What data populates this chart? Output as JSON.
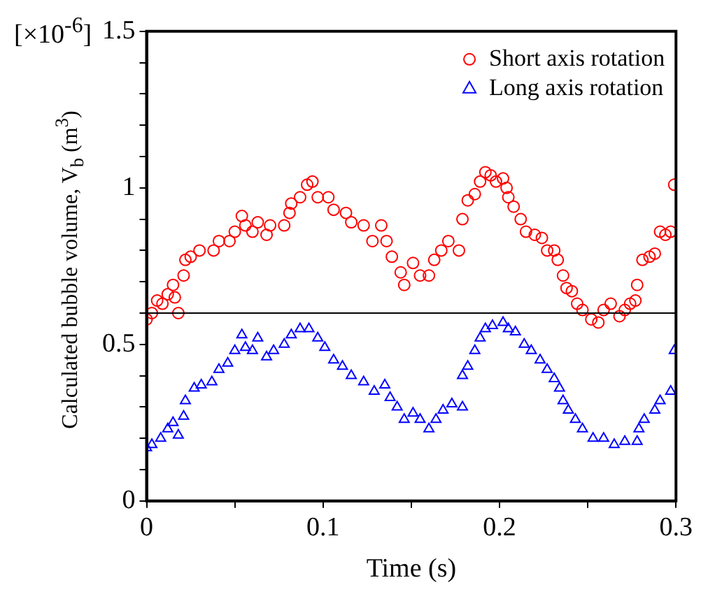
{
  "chart_data": {
    "type": "scatter",
    "xlabel": "Time (s)",
    "ylabel": "Calculated bubble volume, V$_{b}$ (m$^{3}$)",
    "annotations": [
      "[×10$^{-6}$]"
    ],
    "xlim": [
      0,
      0.3
    ],
    "xticks": [
      0,
      {
        "value": 0.05,
        "label": null
      },
      0.1,
      {
        "value": 0.15,
        "label": null
      },
      0.2,
      {
        "value": 0.25,
        "label": null
      },
      0.3
    ],
    "ylim": [
      0,
      1.5
    ],
    "yticks": [
      0,
      {
        "value": 0.1,
        "label": null
      },
      {
        "value": 0.2,
        "label": null
      },
      {
        "value": 0.3,
        "label": null
      },
      {
        "value": 0.4,
        "label": null
      },
      0.5,
      {
        "value": 0.6,
        "label": null
      },
      {
        "value": 0.7,
        "label": null
      },
      {
        "value": 0.8,
        "label": null
      },
      {
        "value": 0.9,
        "label": null
      },
      1,
      {
        "value": 1.1,
        "label": null
      },
      {
        "value": 1.2,
        "label": null
      },
      {
        "value": 1.3,
        "label": null
      },
      {
        "value": 1.4,
        "label": null
      },
      1.5
    ],
    "grid": false,
    "legend": "top right",
    "ref_lines": [
      {
        "axis": "y",
        "value": 0.6,
        "color": "#000000"
      }
    ],
    "series": [
      {
        "name": "Short axis rotation",
        "color": "#ff0000",
        "marker": "circle",
        "x": [
          0.0,
          0.003,
          0.006,
          0.009,
          0.012,
          0.015,
          0.016,
          0.018,
          0.021,
          0.022,
          0.025,
          0.03,
          0.038,
          0.041,
          0.047,
          0.05,
          0.054,
          0.056,
          0.06,
          0.063,
          0.068,
          0.07,
          0.078,
          0.081,
          0.082,
          0.087,
          0.091,
          0.094,
          0.097,
          0.103,
          0.106,
          0.113,
          0.116,
          0.123,
          0.128,
          0.133,
          0.136,
          0.139,
          0.144,
          0.146,
          0.151,
          0.155,
          0.16,
          0.163,
          0.167,
          0.171,
          0.177,
          0.179,
          0.182,
          0.186,
          0.189,
          0.192,
          0.195,
          0.198,
          0.202,
          0.204,
          0.205,
          0.208,
          0.212,
          0.215,
          0.22,
          0.224,
          0.227,
          0.231,
          0.233,
          0.236,
          0.238,
          0.241,
          0.244,
          0.247,
          0.252,
          0.256,
          0.259,
          0.263,
          0.268,
          0.271,
          0.274,
          0.277,
          0.278,
          0.281,
          0.285,
          0.288,
          0.291,
          0.294,
          0.297,
          0.299
        ],
        "values": [
          0.58,
          0.6,
          0.64,
          0.63,
          0.66,
          0.69,
          0.65,
          0.6,
          0.72,
          0.77,
          0.78,
          0.8,
          0.8,
          0.83,
          0.83,
          0.86,
          0.91,
          0.88,
          0.86,
          0.89,
          0.85,
          0.88,
          0.88,
          0.92,
          0.95,
          0.97,
          1.01,
          1.02,
          0.97,
          0.97,
          0.93,
          0.92,
          0.89,
          0.88,
          0.83,
          0.88,
          0.83,
          0.78,
          0.73,
          0.69,
          0.76,
          0.72,
          0.72,
          0.77,
          0.8,
          0.83,
          0.8,
          0.9,
          0.96,
          0.98,
          1.02,
          1.05,
          1.04,
          1.02,
          1.03,
          1.0,
          0.97,
          0.94,
          0.9,
          0.86,
          0.85,
          0.84,
          0.8,
          0.8,
          0.77,
          0.72,
          0.68,
          0.67,
          0.63,
          0.61,
          0.58,
          0.57,
          0.61,
          0.63,
          0.59,
          0.61,
          0.63,
          0.64,
          0.69,
          0.77,
          0.78,
          0.79,
          0.86,
          0.85,
          0.86,
          1.01
        ]
      },
      {
        "name": "Long axis rotation",
        "color": "#0000ff",
        "marker": "triangle",
        "x": [
          0.0,
          0.003,
          0.008,
          0.012,
          0.015,
          0.018,
          0.021,
          0.022,
          0.027,
          0.031,
          0.037,
          0.041,
          0.046,
          0.05,
          0.054,
          0.056,
          0.06,
          0.063,
          0.068,
          0.072,
          0.078,
          0.082,
          0.087,
          0.092,
          0.097,
          0.101,
          0.106,
          0.111,
          0.116,
          0.123,
          0.129,
          0.135,
          0.138,
          0.142,
          0.146,
          0.151,
          0.155,
          0.16,
          0.164,
          0.168,
          0.173,
          0.179,
          0.179,
          0.182,
          0.186,
          0.189,
          0.192,
          0.196,
          0.202,
          0.205,
          0.209,
          0.214,
          0.218,
          0.223,
          0.227,
          0.231,
          0.234,
          0.236,
          0.239,
          0.243,
          0.247,
          0.253,
          0.259,
          0.265,
          0.271,
          0.278,
          0.279,
          0.282,
          0.288,
          0.291,
          0.297,
          0.299
        ],
        "values": [
          0.17,
          0.18,
          0.2,
          0.23,
          0.25,
          0.21,
          0.27,
          0.32,
          0.36,
          0.37,
          0.38,
          0.42,
          0.44,
          0.48,
          0.53,
          0.49,
          0.48,
          0.52,
          0.46,
          0.48,
          0.5,
          0.53,
          0.55,
          0.55,
          0.52,
          0.49,
          0.45,
          0.43,
          0.4,
          0.38,
          0.35,
          0.37,
          0.33,
          0.3,
          0.26,
          0.28,
          0.26,
          0.23,
          0.26,
          0.29,
          0.31,
          0.3,
          0.4,
          0.43,
          0.48,
          0.52,
          0.55,
          0.56,
          0.57,
          0.55,
          0.54,
          0.5,
          0.48,
          0.45,
          0.42,
          0.39,
          0.36,
          0.32,
          0.29,
          0.26,
          0.23,
          0.2,
          0.2,
          0.18,
          0.19,
          0.19,
          0.23,
          0.26,
          0.29,
          0.32,
          0.35,
          0.48
        ]
      }
    ]
  }
}
